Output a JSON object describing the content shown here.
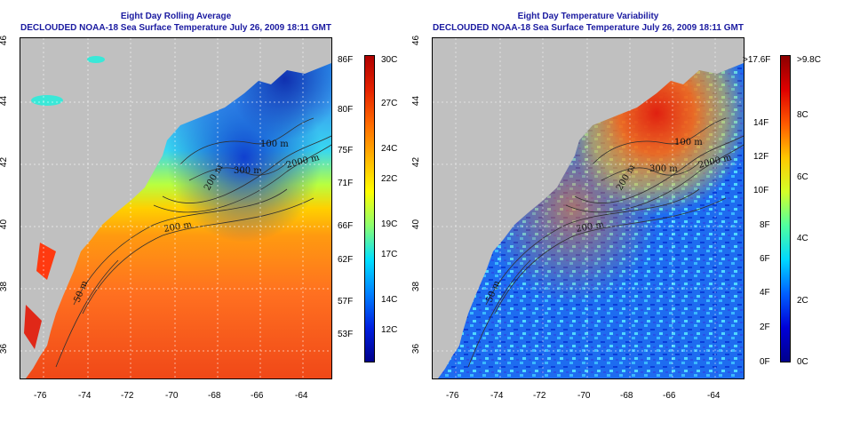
{
  "left": {
    "title_line1": "Eight Day Rolling Average",
    "title_line2": "DECLOUDED NOAA-18 Sea Surface Temperature July 26, 2009 18:11 GMT",
    "contours": [
      "100 m",
      "300 m",
      "200 m",
      "2000 m",
      "200 m",
      "50 m"
    ],
    "colorbar": {
      "left_labels": [
        "86F",
        "80F",
        "75F",
        "71F",
        "66F",
        "62F",
        "57F",
        "53F"
      ],
      "right_labels": [
        "30C",
        "27C",
        "24C",
        "22C",
        "19C",
        "17C",
        "14C",
        "12C"
      ],
      "colors": [
        "#b00000",
        "#e52200",
        "#ff6a00",
        "#ffb400",
        "#ffff00",
        "#8cff70",
        "#00e0ff",
        "#0080ff",
        "#0020e0",
        "#00008c"
      ]
    }
  },
  "right": {
    "title_line1": "Eight Day Temperature Variability",
    "title_line2": "DECLOUDED NOAA-18 Sea Surface Temperature July 26, 2009 18:11 GMT",
    "contours": [
      "100 m",
      "300 m",
      "2000 m",
      "200 m",
      "200 m",
      "50 m"
    ],
    "colorbar": {
      "left_labels": [
        ">17.6F",
        "14F",
        "12F",
        "10F",
        "8F",
        "6F",
        "4F",
        "2F",
        "0F"
      ],
      "right_labels": [
        ">9.8C",
        "8C",
        "6C",
        "4C",
        "2C",
        "0C"
      ],
      "colors": [
        "#8c0000",
        "#e00000",
        "#ff5a00",
        "#ffc800",
        "#d4ff28",
        "#50ffa0",
        "#00d8ff",
        "#0060ff",
        "#0000d8",
        "#00008c"
      ]
    }
  },
  "axes": {
    "x_ticks": [
      "-76",
      "-74",
      "-72",
      "-70",
      "-68",
      "-66",
      "-64"
    ],
    "y_ticks": [
      "36",
      "38",
      "40",
      "42",
      "44",
      "46"
    ]
  },
  "colors": {
    "land": "#c0c0c0",
    "title": "#1a1aa0"
  }
}
